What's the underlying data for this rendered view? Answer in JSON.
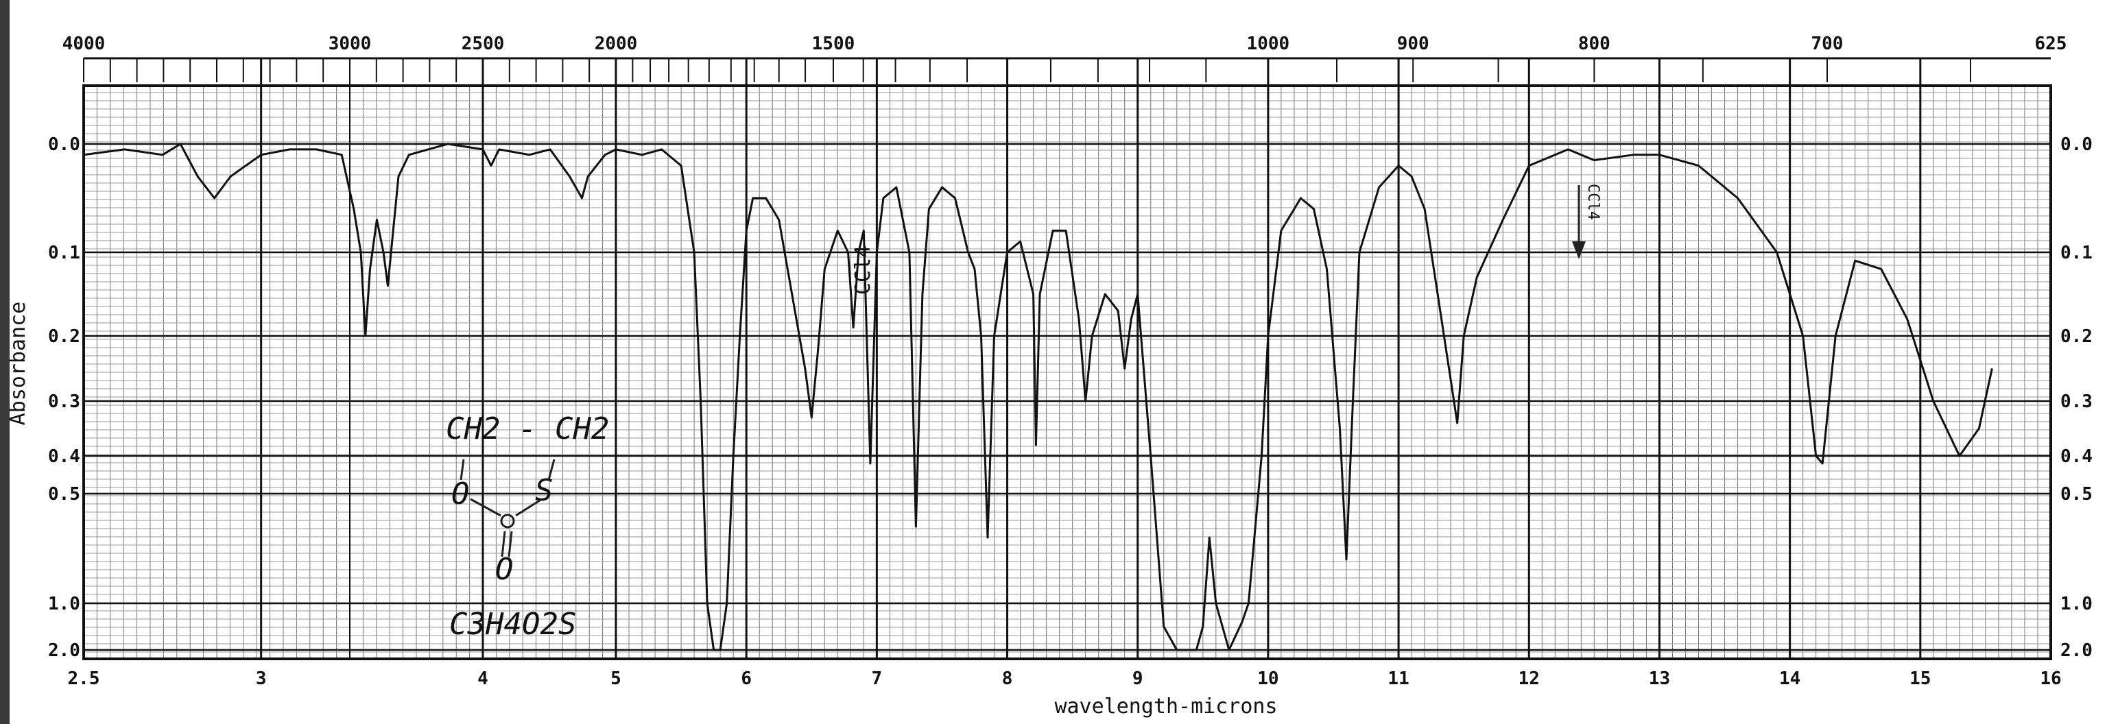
{
  "chart_data": {
    "type": "line",
    "title": "",
    "xlabel": "wavelength-microns",
    "ylabel": "Absorbance",
    "x_unit_ticks": [
      "2.5",
      "3",
      "4",
      "5",
      "6",
      "7",
      "8",
      "9",
      "10",
      "11",
      "12",
      "13",
      "14",
      "15",
      "16"
    ],
    "x_unit_tick_values": [
      2.5,
      3,
      4,
      5,
      6,
      7,
      8,
      9,
      10,
      11,
      12,
      13,
      14,
      15,
      16
    ],
    "top_wavenumber_ticks": [
      "4000",
      "3000",
      "2500",
      "2000",
      "1500",
      "1000",
      "900",
      "800",
      "700",
      "625"
    ],
    "top_wavenumber_values": [
      4000,
      3000,
      2500,
      2000,
      1500,
      1000,
      900,
      800,
      700,
      625
    ],
    "y_ticks": [
      "0.0",
      "0.1",
      "0.2",
      "0.3",
      "0.4",
      "0.5",
      "1.0",
      "2.0"
    ],
    "y_tick_values": [
      0.0,
      0.1,
      0.2,
      0.3,
      0.4,
      0.5,
      1.0,
      2.0
    ],
    "xlim": [
      2.5,
      16
    ],
    "ylim": [
      0,
      2.0
    ],
    "grid": true,
    "annotations": {
      "solvent_label": "CCl4",
      "structure_top": "CH2 - CH2",
      "structure_left_atom": "O",
      "structure_right_atom": "S",
      "structure_bottom_atom": "O",
      "formula": "C3H4O2S",
      "arrow_note": "CCl4"
    },
    "series": [
      {
        "points": [
          [
            2.5,
            0.01
          ],
          [
            2.6,
            0.005
          ],
          [
            2.7,
            0.01
          ],
          [
            2.75,
            0.0
          ],
          [
            2.8,
            0.03
          ],
          [
            2.85,
            0.05
          ],
          [
            2.9,
            0.03
          ],
          [
            3.0,
            0.01
          ],
          [
            3.1,
            0.005
          ],
          [
            3.2,
            0.005
          ],
          [
            3.3,
            0.01
          ],
          [
            3.35,
            0.06
          ],
          [
            3.38,
            0.1
          ],
          [
            3.4,
            0.2
          ],
          [
            3.42,
            0.12
          ],
          [
            3.45,
            0.07
          ],
          [
            3.48,
            0.1
          ],
          [
            3.5,
            0.14
          ],
          [
            3.52,
            0.09
          ],
          [
            3.55,
            0.03
          ],
          [
            3.6,
            0.01
          ],
          [
            3.8,
            0.0
          ],
          [
            4.0,
            0.005
          ],
          [
            4.05,
            0.02
          ],
          [
            4.1,
            0.005
          ],
          [
            4.3,
            0.01
          ],
          [
            4.45,
            0.005
          ],
          [
            4.6,
            0.03
          ],
          [
            4.7,
            0.05
          ],
          [
            4.75,
            0.03
          ],
          [
            4.9,
            0.01
          ],
          [
            5.0,
            0.005
          ],
          [
            5.2,
            0.01
          ],
          [
            5.35,
            0.005
          ],
          [
            5.5,
            0.02
          ],
          [
            5.6,
            0.1
          ],
          [
            5.65,
            0.3
          ],
          [
            5.7,
            1.0
          ],
          [
            5.75,
            2.0
          ],
          [
            5.8,
            2.0
          ],
          [
            5.85,
            1.0
          ],
          [
            5.9,
            0.4
          ],
          [
            5.95,
            0.2
          ],
          [
            6.0,
            0.08
          ],
          [
            6.05,
            0.05
          ],
          [
            6.15,
            0.05
          ],
          [
            6.25,
            0.07
          ],
          [
            6.35,
            0.15
          ],
          [
            6.45,
            0.25
          ],
          [
            6.5,
            0.33
          ],
          [
            6.55,
            0.22
          ],
          [
            6.6,
            0.12
          ],
          [
            6.7,
            0.08
          ],
          [
            6.78,
            0.1
          ],
          [
            6.82,
            0.19
          ],
          [
            6.86,
            0.1
          ],
          [
            6.9,
            0.08
          ],
          [
            6.95,
            0.42
          ],
          [
            7.0,
            0.1
          ],
          [
            7.05,
            0.05
          ],
          [
            7.15,
            0.04
          ],
          [
            7.25,
            0.1
          ],
          [
            7.3,
            0.65
          ],
          [
            7.35,
            0.15
          ],
          [
            7.4,
            0.06
          ],
          [
            7.5,
            0.04
          ],
          [
            7.6,
            0.05
          ],
          [
            7.7,
            0.1
          ],
          [
            7.75,
            0.12
          ],
          [
            7.8,
            0.2
          ],
          [
            7.85,
            0.7
          ],
          [
            7.9,
            0.2
          ],
          [
            8.0,
            0.1
          ],
          [
            8.1,
            0.09
          ],
          [
            8.2,
            0.15
          ],
          [
            8.22,
            0.38
          ],
          [
            8.25,
            0.15
          ],
          [
            8.35,
            0.08
          ],
          [
            8.45,
            0.08
          ],
          [
            8.55,
            0.18
          ],
          [
            8.6,
            0.3
          ],
          [
            8.65,
            0.2
          ],
          [
            8.75,
            0.15
          ],
          [
            8.85,
            0.17
          ],
          [
            8.9,
            0.25
          ],
          [
            8.95,
            0.18
          ],
          [
            9.0,
            0.15
          ],
          [
            9.1,
            0.4
          ],
          [
            9.2,
            1.5
          ],
          [
            9.3,
            2.0
          ],
          [
            9.45,
            2.0
          ],
          [
            9.5,
            1.5
          ],
          [
            9.55,
            0.7
          ],
          [
            9.6,
            1.0
          ],
          [
            9.7,
            2.0
          ],
          [
            9.8,
            1.4
          ],
          [
            9.85,
            1.0
          ],
          [
            9.95,
            0.4
          ],
          [
            10.0,
            0.2
          ],
          [
            10.1,
            0.08
          ],
          [
            10.25,
            0.05
          ],
          [
            10.35,
            0.06
          ],
          [
            10.45,
            0.12
          ],
          [
            10.55,
            0.35
          ],
          [
            10.6,
            0.8
          ],
          [
            10.65,
            0.3
          ],
          [
            10.7,
            0.1
          ],
          [
            10.85,
            0.04
          ],
          [
            11.0,
            0.02
          ],
          [
            11.1,
            0.03
          ],
          [
            11.2,
            0.06
          ],
          [
            11.3,
            0.15
          ],
          [
            11.45,
            0.34
          ],
          [
            11.5,
            0.2
          ],
          [
            11.6,
            0.13
          ],
          [
            11.8,
            0.07
          ],
          [
            12.0,
            0.02
          ],
          [
            12.3,
            0.005
          ],
          [
            12.5,
            0.015
          ],
          [
            12.8,
            0.01
          ],
          [
            13.0,
            0.01
          ],
          [
            13.3,
            0.02
          ],
          [
            13.6,
            0.05
          ],
          [
            13.9,
            0.1
          ],
          [
            14.1,
            0.2
          ],
          [
            14.2,
            0.4
          ],
          [
            14.25,
            0.42
          ],
          [
            14.35,
            0.2
          ],
          [
            14.5,
            0.11
          ],
          [
            14.7,
            0.12
          ],
          [
            14.9,
            0.18
          ],
          [
            15.1,
            0.3
          ],
          [
            15.3,
            0.4
          ],
          [
            15.45,
            0.35
          ],
          [
            15.55,
            0.25
          ]
        ]
      }
    ]
  }
}
